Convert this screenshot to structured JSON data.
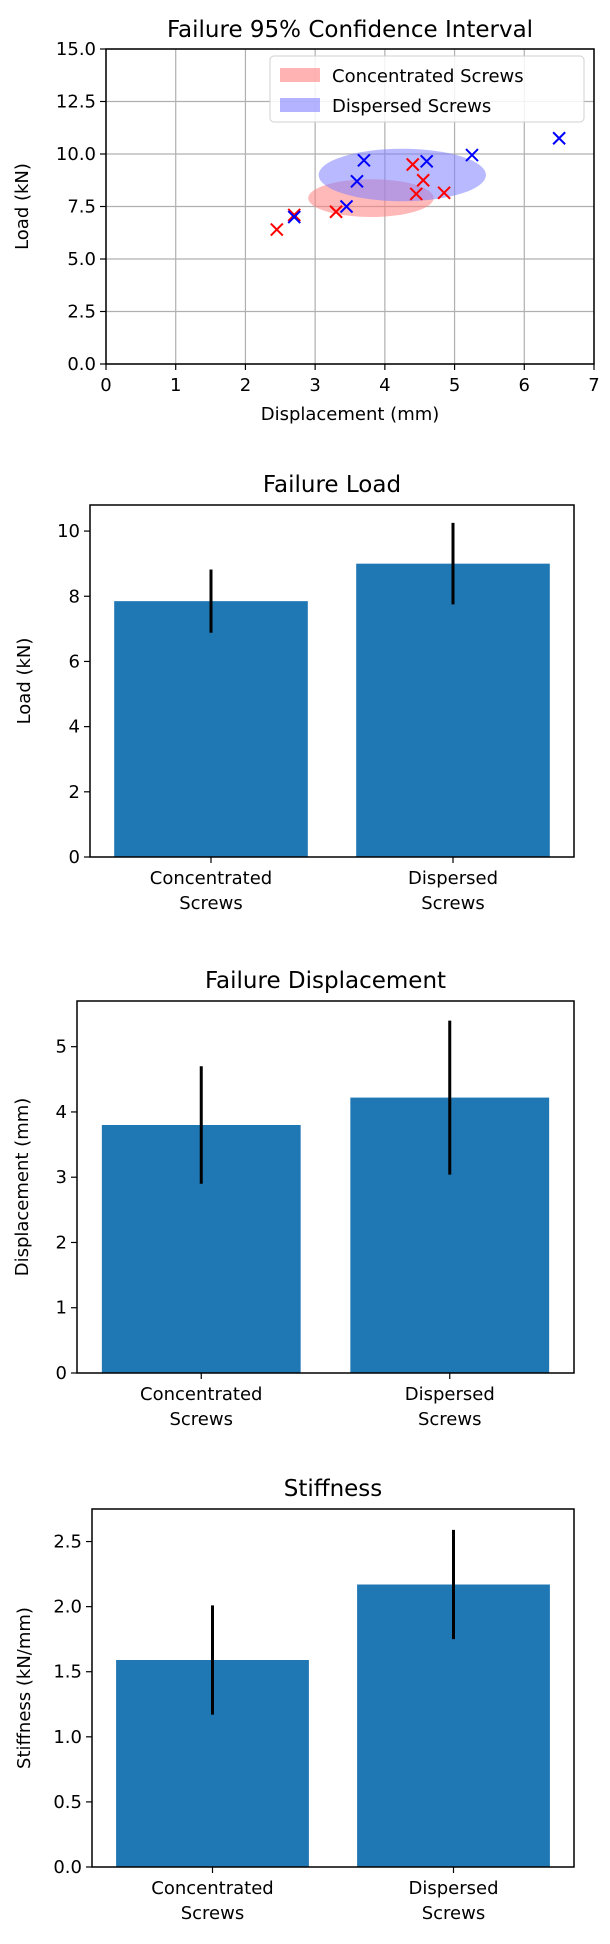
{
  "chart_data": [
    {
      "type": "scatter",
      "title": "Failure 95% Confidence Interval",
      "xlabel": "Displacement (mm)",
      "ylabel": "Load (kN)",
      "xlim": [
        0,
        7
      ],
      "ylim": [
        0,
        15
      ],
      "xticks": [
        "0",
        "1",
        "2",
        "3",
        "4",
        "5",
        "6",
        "7"
      ],
      "yticks": [
        "0.0",
        "2.5",
        "5.0",
        "7.5",
        "10.0",
        "12.5",
        "15.0"
      ],
      "grid": true,
      "legend_position": "top-right",
      "series": [
        {
          "name": "Concentrated Screws",
          "marker": "x",
          "color": "#ff0000",
          "ellipse_color": "#ff8080",
          "points": [
            [
              2.45,
              6.4
            ],
            [
              2.7,
              7.1
            ],
            [
              3.3,
              7.25
            ],
            [
              4.4,
              9.5
            ],
            [
              4.45,
              8.1
            ],
            [
              4.55,
              8.75
            ],
            [
              4.85,
              8.15
            ]
          ],
          "ellipse": {
            "cx": 3.8,
            "cy": 7.9,
            "rx": 0.9,
            "ry": 0.9
          }
        },
        {
          "name": "Dispersed Screws",
          "marker": "x",
          "color": "#0000ff",
          "ellipse_color": "#8080ff",
          "points": [
            [
              2.7,
              7.0
            ],
            [
              3.45,
              7.5
            ],
            [
              3.6,
              8.7
            ],
            [
              3.7,
              9.7
            ],
            [
              4.6,
              9.65
            ],
            [
              5.25,
              9.95
            ],
            [
              6.5,
              10.75
            ]
          ],
          "ellipse": {
            "cx": 4.25,
            "cy": 9.0,
            "rx": 1.2,
            "ry": 1.25
          }
        }
      ]
    },
    {
      "type": "bar",
      "title": "Failure Load",
      "ylabel": "Load (kN)",
      "categories": [
        "Concentrated\nScrews",
        "Dispersed\nScrews"
      ],
      "values": [
        7.85,
        9.0
      ],
      "errors": [
        0.97,
        1.25
      ],
      "ylim": [
        0,
        10.8
      ],
      "yticks": [
        "0",
        "2",
        "4",
        "6",
        "8",
        "10"
      ],
      "color": "#1f77b4"
    },
    {
      "type": "bar",
      "title": "Failure Displacement",
      "ylabel": "Displacement (mm)",
      "categories": [
        "Concentrated\nScrews",
        "Dispersed\nScrews"
      ],
      "values": [
        3.8,
        4.22
      ],
      "errors": [
        0.9,
        1.18
      ],
      "ylim": [
        0,
        5.7
      ],
      "yticks": [
        "0",
        "1",
        "2",
        "3",
        "4",
        "5"
      ],
      "color": "#1f77b4"
    },
    {
      "type": "bar",
      "title": "Stiffness",
      "ylabel": "Stiffness (kN/mm)",
      "categories": [
        "Concentrated\nScrews",
        "Dispersed\nScrews"
      ],
      "values": [
        1.59,
        2.17
      ],
      "errors": [
        0.42,
        0.42
      ],
      "ylim": [
        0,
        2.75
      ],
      "yticks": [
        "0.0",
        "0.5",
        "1.0",
        "1.5",
        "2.0",
        "2.5"
      ],
      "color": "#1f77b4"
    }
  ]
}
